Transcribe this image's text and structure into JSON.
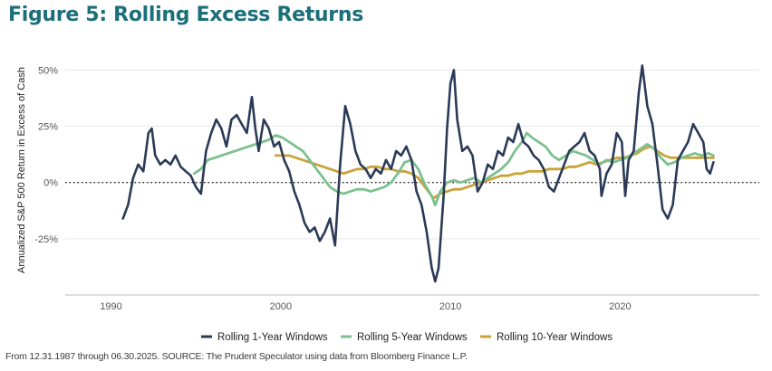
{
  "figure": {
    "title": "Figure 5: Rolling Excess Returns",
    "footnote": "From 12.31.1987 through 06.30.2025. SOURCE: The Prudent Speculator using data from Bloomberg Finance L.P."
  },
  "colors": {
    "title": "#1b6f7b",
    "one_year": "#2b3a57",
    "five_year": "#7dc08f",
    "ten_year": "#c9a33a",
    "gridline": "#e6e6e6",
    "zero_line": "#222222"
  },
  "chart_data": {
    "type": "line",
    "title": "",
    "xlabel": "",
    "ylabel": "Annualized S&P 500 Return in Excess of Cash",
    "xlim": [
      1987.3,
      2028.2
    ],
    "ylim": [
      -50,
      57
    ],
    "x_ticks": [
      1990,
      2000,
      2010,
      2020
    ],
    "x_tick_labels": [
      "1990",
      "2000",
      "2010",
      "2020"
    ],
    "y_ticks": [
      -25,
      0,
      25,
      50
    ],
    "y_tick_labels": [
      "-25%",
      "0%",
      "25%",
      "50%"
    ],
    "grid": "horizontal",
    "zero_reference": "dotted",
    "legend_position": "bottom",
    "series": [
      {
        "name": "Rolling 1-Year Windows",
        "color": "#2b3a57",
        "points": [
          [
            1990.7,
            -16
          ],
          [
            1991.0,
            -10
          ],
          [
            1991.3,
            2
          ],
          [
            1991.6,
            8
          ],
          [
            1991.9,
            5
          ],
          [
            1992.2,
            22
          ],
          [
            1992.4,
            24
          ],
          [
            1992.6,
            12
          ],
          [
            1992.9,
            8
          ],
          [
            1993.2,
            10
          ],
          [
            1993.5,
            8
          ],
          [
            1993.8,
            12
          ],
          [
            1994.1,
            7
          ],
          [
            1994.4,
            5
          ],
          [
            1994.7,
            3
          ],
          [
            1995.0,
            -2
          ],
          [
            1995.3,
            -5
          ],
          [
            1995.6,
            14
          ],
          [
            1995.9,
            22
          ],
          [
            1996.2,
            28
          ],
          [
            1996.5,
            24
          ],
          [
            1996.8,
            16
          ],
          [
            1997.1,
            28
          ],
          [
            1997.4,
            30
          ],
          [
            1997.7,
            26
          ],
          [
            1998.0,
            22
          ],
          [
            1998.3,
            38
          ],
          [
            1998.5,
            24
          ],
          [
            1998.7,
            14
          ],
          [
            1999.0,
            28
          ],
          [
            1999.3,
            24
          ],
          [
            1999.6,
            16
          ],
          [
            1999.9,
            18
          ],
          [
            2000.2,
            10
          ],
          [
            2000.5,
            5
          ],
          [
            2000.8,
            -4
          ],
          [
            2001.1,
            -10
          ],
          [
            2001.4,
            -18
          ],
          [
            2001.7,
            -22
          ],
          [
            2002.0,
            -20
          ],
          [
            2002.3,
            -26
          ],
          [
            2002.6,
            -22
          ],
          [
            2002.9,
            -16
          ],
          [
            2003.2,
            -28
          ],
          [
            2003.5,
            8
          ],
          [
            2003.8,
            34
          ],
          [
            2004.1,
            26
          ],
          [
            2004.4,
            14
          ],
          [
            2004.7,
            8
          ],
          [
            2005.0,
            6
          ],
          [
            2005.3,
            2
          ],
          [
            2005.6,
            6
          ],
          [
            2005.9,
            4
          ],
          [
            2006.2,
            10
          ],
          [
            2006.5,
            6
          ],
          [
            2006.8,
            14
          ],
          [
            2007.1,
            12
          ],
          [
            2007.4,
            16
          ],
          [
            2007.7,
            10
          ],
          [
            2008.0,
            -4
          ],
          [
            2008.3,
            -10
          ],
          [
            2008.6,
            -22
          ],
          [
            2008.9,
            -38
          ],
          [
            2009.1,
            -44
          ],
          [
            2009.3,
            -38
          ],
          [
            2009.6,
            -6
          ],
          [
            2009.8,
            24
          ],
          [
            2010.0,
            44
          ],
          [
            2010.2,
            50
          ],
          [
            2010.4,
            28
          ],
          [
            2010.7,
            14
          ],
          [
            2011.0,
            16
          ],
          [
            2011.3,
            12
          ],
          [
            2011.6,
            -4
          ],
          [
            2011.9,
            0
          ],
          [
            2012.2,
            8
          ],
          [
            2012.5,
            6
          ],
          [
            2012.8,
            14
          ],
          [
            2013.1,
            12
          ],
          [
            2013.4,
            20
          ],
          [
            2013.7,
            18
          ],
          [
            2014.0,
            26
          ],
          [
            2014.3,
            18
          ],
          [
            2014.6,
            16
          ],
          [
            2014.9,
            12
          ],
          [
            2015.2,
            10
          ],
          [
            2015.5,
            6
          ],
          [
            2015.8,
            -2
          ],
          [
            2016.1,
            -4
          ],
          [
            2016.4,
            2
          ],
          [
            2016.7,
            8
          ],
          [
            2017.0,
            14
          ],
          [
            2017.3,
            16
          ],
          [
            2017.6,
            18
          ],
          [
            2017.9,
            22
          ],
          [
            2018.2,
            14
          ],
          [
            2018.5,
            12
          ],
          [
            2018.8,
            6
          ],
          [
            2018.9,
            -6
          ],
          [
            2019.2,
            4
          ],
          [
            2019.5,
            8
          ],
          [
            2019.8,
            22
          ],
          [
            2020.1,
            18
          ],
          [
            2020.3,
            -6
          ],
          [
            2020.5,
            10
          ],
          [
            2020.8,
            14
          ],
          [
            2021.1,
            40
          ],
          [
            2021.3,
            52
          ],
          [
            2021.6,
            34
          ],
          [
            2021.9,
            26
          ],
          [
            2022.2,
            8
          ],
          [
            2022.5,
            -12
          ],
          [
            2022.8,
            -16
          ],
          [
            2023.1,
            -10
          ],
          [
            2023.4,
            10
          ],
          [
            2023.7,
            14
          ],
          [
            2024.0,
            18
          ],
          [
            2024.3,
            26
          ],
          [
            2024.6,
            22
          ],
          [
            2024.9,
            18
          ],
          [
            2025.1,
            6
          ],
          [
            2025.3,
            4
          ],
          [
            2025.5,
            9
          ]
        ]
      },
      {
        "name": "Rolling 5-Year Windows",
        "color": "#7dc08f",
        "points": [
          [
            1994.9,
            4
          ],
          [
            1995.3,
            6
          ],
          [
            1995.7,
            10
          ],
          [
            1996.1,
            11
          ],
          [
            1996.5,
            12
          ],
          [
            1996.9,
            13
          ],
          [
            1997.3,
            14
          ],
          [
            1997.7,
            15
          ],
          [
            1998.1,
            16
          ],
          [
            1998.5,
            17
          ],
          [
            1998.9,
            18
          ],
          [
            1999.3,
            19
          ],
          [
            1999.7,
            21
          ],
          [
            2000.1,
            20
          ],
          [
            2000.5,
            18
          ],
          [
            2000.9,
            16
          ],
          [
            2001.3,
            14
          ],
          [
            2001.7,
            10
          ],
          [
            2002.1,
            6
          ],
          [
            2002.5,
            2
          ],
          [
            2002.9,
            -2
          ],
          [
            2003.3,
            -4
          ],
          [
            2003.7,
            -5
          ],
          [
            2004.1,
            -4
          ],
          [
            2004.5,
            -3
          ],
          [
            2004.9,
            -3
          ],
          [
            2005.3,
            -4
          ],
          [
            2005.7,
            -3
          ],
          [
            2006.1,
            -2
          ],
          [
            2006.5,
            0
          ],
          [
            2006.9,
            4
          ],
          [
            2007.3,
            9
          ],
          [
            2007.7,
            10
          ],
          [
            2008.1,
            6
          ],
          [
            2008.5,
            -1
          ],
          [
            2008.9,
            -6
          ],
          [
            2009.1,
            -10
          ],
          [
            2009.4,
            -4
          ],
          [
            2009.8,
            0
          ],
          [
            2010.2,
            1
          ],
          [
            2010.6,
            0
          ],
          [
            2011.0,
            1
          ],
          [
            2011.4,
            2
          ],
          [
            2011.8,
            0
          ],
          [
            2012.2,
            2
          ],
          [
            2012.6,
            4
          ],
          [
            2013.0,
            6
          ],
          [
            2013.4,
            9
          ],
          [
            2013.8,
            14
          ],
          [
            2014.2,
            18
          ],
          [
            2014.5,
            22
          ],
          [
            2014.8,
            20
          ],
          [
            2015.2,
            18
          ],
          [
            2015.6,
            16
          ],
          [
            2016.0,
            12
          ],
          [
            2016.4,
            10
          ],
          [
            2016.8,
            12
          ],
          [
            2017.2,
            14
          ],
          [
            2017.6,
            13
          ],
          [
            2018.0,
            12
          ],
          [
            2018.4,
            10
          ],
          [
            2018.8,
            8
          ],
          [
            2019.2,
            10
          ],
          [
            2019.6,
            9
          ],
          [
            2020.0,
            10
          ],
          [
            2020.4,
            11
          ],
          [
            2020.8,
            13
          ],
          [
            2021.2,
            15
          ],
          [
            2021.6,
            17
          ],
          [
            2022.0,
            15
          ],
          [
            2022.4,
            11
          ],
          [
            2022.8,
            8
          ],
          [
            2023.2,
            9
          ],
          [
            2023.6,
            11
          ],
          [
            2024.0,
            12
          ],
          [
            2024.4,
            13
          ],
          [
            2024.8,
            12
          ],
          [
            2025.2,
            13
          ],
          [
            2025.5,
            12
          ]
        ]
      },
      {
        "name": "Rolling 10-Year Windows",
        "color": "#c9a33a",
        "points": [
          [
            1999.7,
            12
          ],
          [
            2000.1,
            12
          ],
          [
            2000.5,
            12
          ],
          [
            2000.9,
            11
          ],
          [
            2001.3,
            10
          ],
          [
            2001.7,
            9
          ],
          [
            2002.1,
            8
          ],
          [
            2002.5,
            7
          ],
          [
            2002.9,
            6
          ],
          [
            2003.3,
            5
          ],
          [
            2003.7,
            4
          ],
          [
            2004.1,
            5
          ],
          [
            2004.5,
            6
          ],
          [
            2004.9,
            6
          ],
          [
            2005.3,
            7
          ],
          [
            2005.7,
            7
          ],
          [
            2006.1,
            6
          ],
          [
            2006.5,
            6
          ],
          [
            2006.9,
            5
          ],
          [
            2007.3,
            5
          ],
          [
            2007.7,
            4
          ],
          [
            2008.1,
            2
          ],
          [
            2008.5,
            -2
          ],
          [
            2008.8,
            -5
          ],
          [
            2009.0,
            -7
          ],
          [
            2009.4,
            -5
          ],
          [
            2009.8,
            -4
          ],
          [
            2010.2,
            -3
          ],
          [
            2010.6,
            -3
          ],
          [
            2011.0,
            -2
          ],
          [
            2011.4,
            -1
          ],
          [
            2011.8,
            0
          ],
          [
            2012.2,
            1
          ],
          [
            2012.6,
            2
          ],
          [
            2013.0,
            3
          ],
          [
            2013.4,
            3
          ],
          [
            2013.8,
            4
          ],
          [
            2014.2,
            4
          ],
          [
            2014.6,
            5
          ],
          [
            2015.0,
            5
          ],
          [
            2015.4,
            5
          ],
          [
            2015.8,
            6
          ],
          [
            2016.2,
            6
          ],
          [
            2016.6,
            6
          ],
          [
            2017.0,
            7
          ],
          [
            2017.4,
            7
          ],
          [
            2017.8,
            8
          ],
          [
            2018.2,
            9
          ],
          [
            2018.6,
            8
          ],
          [
            2019.0,
            9
          ],
          [
            2019.4,
            10
          ],
          [
            2019.8,
            11
          ],
          [
            2020.2,
            11
          ],
          [
            2020.6,
            12
          ],
          [
            2021.0,
            13
          ],
          [
            2021.4,
            15
          ],
          [
            2021.8,
            16
          ],
          [
            2022.2,
            14
          ],
          [
            2022.6,
            12
          ],
          [
            2023.0,
            11
          ],
          [
            2023.4,
            11
          ],
          [
            2023.8,
            11
          ],
          [
            2024.2,
            11
          ],
          [
            2024.6,
            11
          ],
          [
            2025.0,
            11
          ],
          [
            2025.5,
            11
          ]
        ]
      }
    ]
  }
}
